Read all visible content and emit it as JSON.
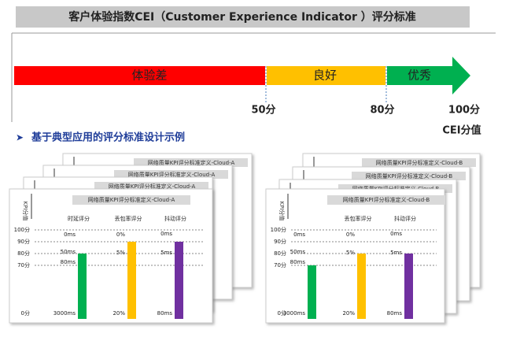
{
  "title": "客户体验指数CEI（Customer Experience Indicator ）评分标准",
  "scale": {
    "segments": [
      {
        "label": "体验差"
      },
      {
        "label": "良好"
      },
      {
        "label": "优秀"
      }
    ],
    "marks": [
      "50分",
      "80分",
      "100分"
    ],
    "axis_label": "CEI分值"
  },
  "section_heading": "基于典型应用的评分标准设计示例",
  "examples": [
    {
      "card_title": "网络质量KPI评分标准定义-Cloud-A",
      "y_axis_label": "KPI分值",
      "y_ticks": [
        "100分",
        "90分",
        "80分",
        "70分",
        "0分"
      ],
      "columns": [
        {
          "title": "时延评分",
          "labels": [
            "0ms",
            "50ms",
            "80ms",
            "3000ms"
          ]
        },
        {
          "title": "丢包率评分",
          "labels": [
            "0%",
            "5%",
            "20%"
          ]
        },
        {
          "title": "抖动评分",
          "labels": [
            "0ms",
            "5ms",
            "80ms"
          ]
        }
      ]
    },
    {
      "card_title": "网络质量KPI评分标准定义-Cloud-B",
      "y_axis_label": "KPI分值",
      "y_ticks": [
        "100分",
        "90分",
        "80分",
        "70分",
        "0分"
      ],
      "columns": [
        {
          "labels": [
            "0ms",
            "50ms",
            "80ms",
            "3000ms"
          ]
        },
        {
          "title": "丢包率评分",
          "labels": [
            "0%",
            "5%",
            "20%"
          ]
        },
        {
          "title": "抖动评分",
          "labels": [
            "0ms",
            "5ms",
            "80ms"
          ]
        }
      ]
    }
  ]
}
